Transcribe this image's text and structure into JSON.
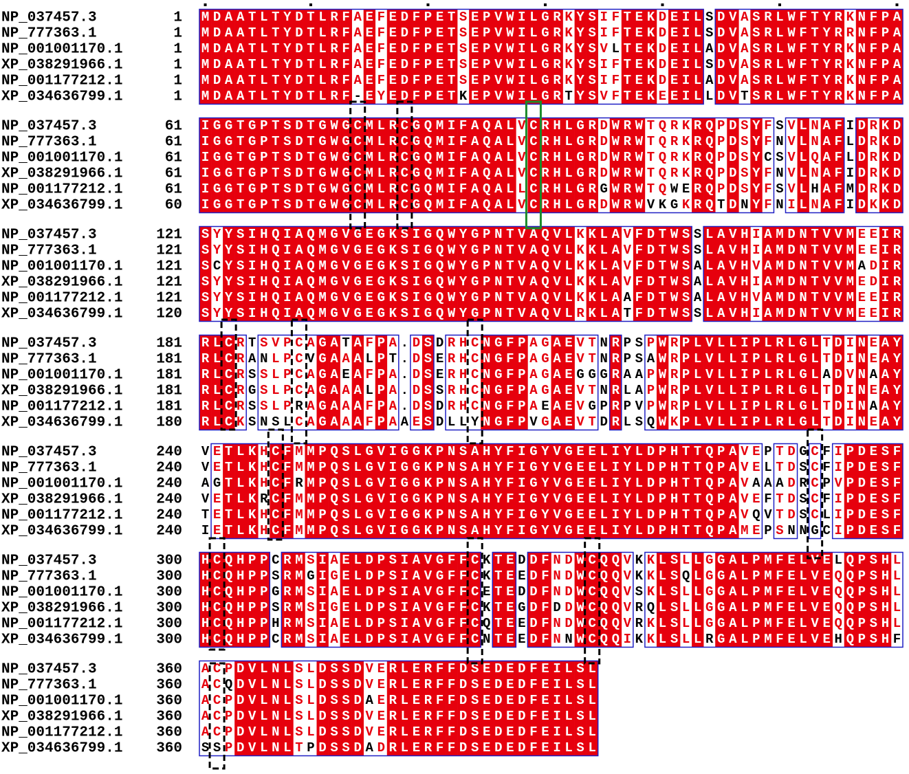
{
  "blocks": [
    {
      "rows": [
        {
          "name": "NP_037457.3",
          "start": 1,
          "sequence": "MDAATLTYDTLRFAEFEDFPETSEPVWILGRKYSIFTEKDEILSDVASRLWFTYRKNFPA"
        },
        {
          "name": "NP_777363.1",
          "start": 1,
          "sequence": "MDAATLTYDTLRFAEFEDFPETSEPVWILGRKYSIFTEKDEILSDVASRLWFTYRRNFPA"
        },
        {
          "name": "NP_001001170.1",
          "start": 1,
          "sequence": "MDAATLTYDTLRFAEFEDFPETSEPVWILGRKYSVLTEKDEILADVASRLWFTYRKNFPA"
        },
        {
          "name": "XP_038291966.1",
          "start": 1,
          "sequence": "MDAATLTYDTLRFAEFEDFPETSEPVWILGRKYSIFTEKDEILSDVASRLWFTYRKNFPA"
        },
        {
          "name": "NP_001177212.1",
          "start": 1,
          "sequence": "MDAATLTYDTLRFAEFEDFPETSEPVWILGRKYSIFTEKDEILADVASRLWFTYRKNFPA"
        },
        {
          "name": "XP_034636799.1",
          "start": 1,
          "sequence": "MDAATLTYDTLRF-EYEDFPETKEPVWILGRTYSVFTEKEEILLDVTSRLWFTYRKNFPA"
        }
      ]
    },
    {
      "rows": [
        {
          "name": "NP_037457.3",
          "start": 61,
          "sequence": "IGGTGPTSDTGWGCMLRCGQMIFAQALVCRHLGRDWRWTQRKRQPDSYFSVLNAFIDRKD"
        },
        {
          "name": "NP_777363.1",
          "start": 61,
          "sequence": "IGGTGPTSDTGWGCMLRCGQMIFAQALVCRHLGRDWRWTQRKRQPDSYFNVLNAFLDRKD"
        },
        {
          "name": "NP_001001170.1",
          "start": 61,
          "sequence": "IGGTGPTSDTGWGCMLRCGQMIFAQALVCRHLGRDWRWTQRKRQPDSYCSVLQAFLDRKD"
        },
        {
          "name": "XP_038291966.1",
          "start": 61,
          "sequence": "IGGTGPTSDTGWGCMLRCGQMIFAQALVCRHLGRDWRWTQRKRQPDSYFNVLNAFIDRKD"
        },
        {
          "name": "NP_001177212.1",
          "start": 61,
          "sequence": "IGGTGPTSDTGWGCMLRCGQMIFAQALLCRHLGRGWRWTQWERQPDSYFSVLHAFMDRKD"
        },
        {
          "name": "XP_034636799.1",
          "start": 60,
          "sequence": "IGGTGPTSDTGWGCMLRCGQMIFAQALVCRHLGRDWRWVKGKRQTDNYFNILNAFIDKKD"
        }
      ]
    },
    {
      "rows": [
        {
          "name": "NP_037457.3",
          "start": 121,
          "sequence": "SYYSIHQIAQMGVGEGKSIGQWYGPNTVAQVLKKLAVFDTWSSLAVHIAMDNTVVMEEIR"
        },
        {
          "name": "NP_777363.1",
          "start": 121,
          "sequence": "SYYSIHQIAQMGVGEGKSIGQWYGPNTVAQVLKKLAVFDTWSSLAVHIAMDNTVVMEEIR"
        },
        {
          "name": "NP_001001170.1",
          "start": 121,
          "sequence": "SCYSIHQIAQMGVGEGKSIGQWYGPNTVAQVLKKLAVFDTWSALAVHVAMDNTVVMADIR"
        },
        {
          "name": "XP_038291966.1",
          "start": 121,
          "sequence": "SYYSIHQIAQMGVGEGKSIGQWYGPNTVAQVLKKLAVFDTWSALAVHIAMDNTVVMEDIR"
        },
        {
          "name": "NP_001177212.1",
          "start": 121,
          "sequence": "SYYSIHQIAQMGVGEGKSIGQWYGPNTVAQVLKKLAAFDTWSALAVHVAMDNTVVMEEIR"
        },
        {
          "name": "XP_034636799.1",
          "start": 120,
          "sequence": "SYYSIHQIAQMGVGEGKSIGQWYGPNTVAQVLRKLATFDTWSSLAVHIAMDNTVVMEEIR"
        }
      ]
    },
    {
      "rows": [
        {
          "name": "NP_037457.3",
          "start": 181,
          "sequence": "RLCRTSVPCAGATAFPA.DSDRHCNGFPAGAEVTNRPSPWRPLVLLIPLRLGLTDINEAY"
        },
        {
          "name": "NP_777363.1",
          "start": 181,
          "sequence": "RLCRANLPCVGAAALPT.DSERHCNGFPAGAEVTNRPSAWRPLVLLIPLRLGLTDINEAY"
        },
        {
          "name": "NP_001001170.1",
          "start": 181,
          "sequence": "RLCRSSLPCAGAEAFPA.DSERHCNGFPAGAEGGGRAAPWRPLVLLIPLRLGLADVNAAY"
        },
        {
          "name": "XP_038291966.1",
          "start": 181,
          "sequence": "RLCRGSLPCAGAAALPA.DSSRHCNGFPAGAEVTNRLAPWRPLVLLIPLRLGLTDINEAY"
        },
        {
          "name": "NP_001177212.1",
          "start": 181,
          "sequence": "RLCRSSLPRAGAAAFPA.DSDRHCNGFPAEAEVGPRPVPWRPLVLLIPLRLGLTDINAAY"
        },
        {
          "name": "XP_034636799.1",
          "start": 180,
          "sequence": "RLCKSNSLCAGAAAFPAAESDLLYNGFPVGAEVTDRLSQWKPLVLLIPLRLGLTDINEAY"
        }
      ]
    },
    {
      "rows": [
        {
          "name": "NP_037457.3",
          "start": 240,
          "sequence": "VETLKHCFMMPQSLGVIGGKPNSAHYFIGYVGEELIYLDPHTTQPAVEPTDGCFIPDESF"
        },
        {
          "name": "NP_777363.1",
          "start": 240,
          "sequence": "VETLKHCFMMPQSLGVIGGKPNSAHYFIGYVGEELIYLDPHTTQPAVELTDSCFIPDESF"
        },
        {
          "name": "NP_001001170.1",
          "start": 240,
          "sequence": "AGTLKHCFRMPQSLGVIGGKPNSAHYFIGYVGEELIYLDPHTTQPAVAAADRCPVPDESF"
        },
        {
          "name": "XP_038291966.1",
          "start": 240,
          "sequence": "VETLKRCFMMPQSLGVIGGKPNSAHYFIGYVGEELIYLDPHTTQPAVEFTDSCFIPDESF"
        },
        {
          "name": "NP_001177212.1",
          "start": 240,
          "sequence": "TETLKHCFMMPQSLGVIGGKPNSAHYFIGYVGEELIYLDPHTTQPAVQVTDSCLIPDESF"
        },
        {
          "name": "XP_034636799.1",
          "start": 240,
          "sequence": "IETLKHCFMMPQSLGVIGGKPNSAHYFIGYVGEELIYLDPHTTQPAMEPSNNGCIPDESF"
        }
      ]
    },
    {
      "rows": [
        {
          "name": "NP_037457.3",
          "start": 300,
          "sequence": "HCQHPPCRMSIAELDPSIAVGFFCKTEDDFNDWCQQVKKLSLLGGALPMFELVELQPSHL"
        },
        {
          "name": "NP_777363.1",
          "start": 300,
          "sequence": "HCQHPPSRMGIGELDPSIAVGFFCKTEEDFNDWCQQVKKLSQLGGALPMFELVEQQPSHL"
        },
        {
          "name": "NP_001001170.1",
          "start": 300,
          "sequence": "HCQHPPGRMSIAELDPSIAVGFFCETEDDFNDWCQQVSKLSLLGGALPMFELVEQQPSHL"
        },
        {
          "name": "XP_038291966.1",
          "start": 300,
          "sequence": "HCQHPPSRMSIGELDPSIAVGFFCKTEGDFDDWCQQVRQLSLLGGALPMFELVEQQPSHL"
        },
        {
          "name": "NP_001177212.1",
          "start": 300,
          "sequence": "HCQHPPHRMSIAELDPSIAVGFFCQTEEDFNDWCQQVRKLSLLGGALPMFELVEQQPSHL"
        },
        {
          "name": "XP_034636799.1",
          "start": 300,
          "sequence": "HCQHPPCRMSIAELDPSIAVGFFCNTEEDFNNWCQQIKKLSLLRGALPMFELVEHQPSHF"
        }
      ]
    },
    {
      "rows": [
        {
          "name": "NP_037457.3",
          "start": 360,
          "sequence": "ACPDVLNLSLDSSDVERLERFFDSEDEDFEILSL"
        },
        {
          "name": "NP_777363.1",
          "start": 360,
          "sequence": "ACQDVLNLSLDSSDVERLERFFDSEDEDFEILSL"
        },
        {
          "name": "NP_001001170.1",
          "start": 360,
          "sequence": "ACPDVLNLSLDSSDAERLERFFDSEDEDFEILSL"
        },
        {
          "name": "XP_038291966.1",
          "start": 360,
          "sequence": "ACPDVLNLSLDSSDVERLERFFDSEDEDFEILSL"
        },
        {
          "name": "NP_001177212.1",
          "start": 360,
          "sequence": "ACPDVLNLSLDSSDVERLERFFDSEDEDFEILSL"
        },
        {
          "name": "XP_034636799.1",
          "start": 360,
          "sequence": "SSPDVLNLTPDSSDADRLERFFDSEDEDFEILSL"
        }
      ]
    }
  ]
}
